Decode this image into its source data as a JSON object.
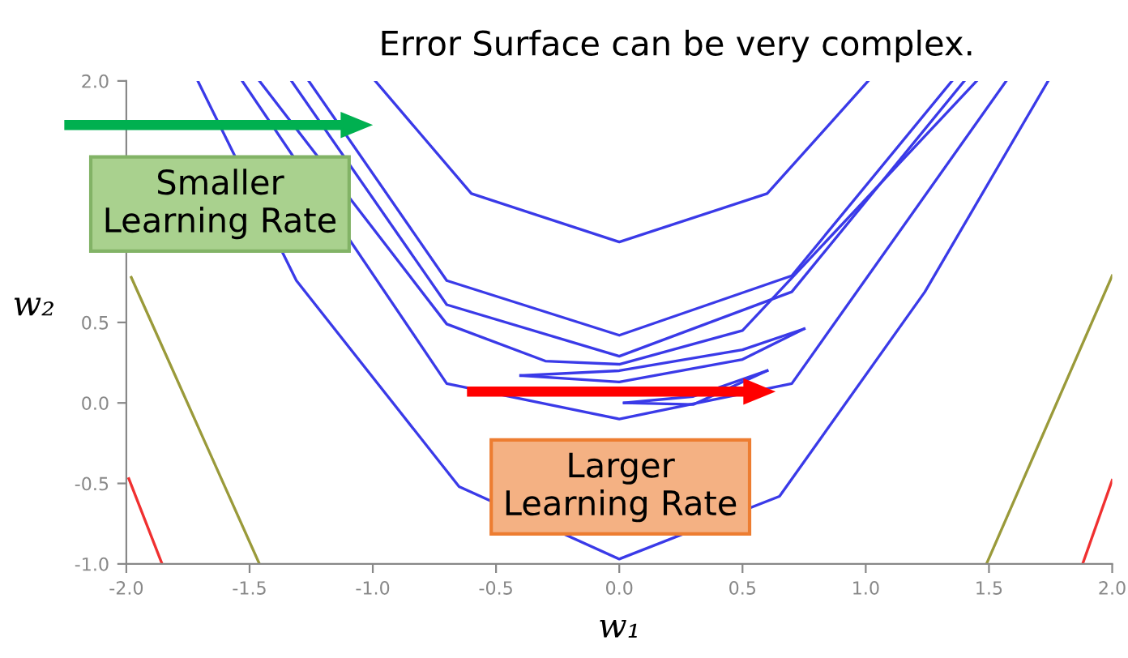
{
  "chart_data": {
    "type": "line",
    "title": "Error Surface can be very complex.",
    "xlabel": "w₁",
    "ylabel": "w₂",
    "xlim": [
      -2.0,
      2.0
    ],
    "ylim": [
      -1.0,
      2.0
    ],
    "xticks": [
      {
        "value": -2.0,
        "label": "-2.0"
      },
      {
        "value": -1.5,
        "label": "-1.5"
      },
      {
        "value": -1.0,
        "label": "-1.0"
      },
      {
        "value": -0.5,
        "label": "-0.5"
      },
      {
        "value": 0.0,
        "label": "0.0"
      },
      {
        "value": 0.5,
        "label": "0.5"
      },
      {
        "value": 1.0,
        "label": "1.0"
      },
      {
        "value": 1.5,
        "label": "1.5"
      },
      {
        "value": 2.0,
        "label": "2.0"
      }
    ],
    "yticks": [
      {
        "value": -1.0,
        "label": "-1.0"
      },
      {
        "value": -0.5,
        "label": "-0.5"
      },
      {
        "value": 0.0,
        "label": "0.0"
      },
      {
        "value": 0.5,
        "label": "0.5"
      },
      {
        "value": 1.0,
        "label": null
      },
      {
        "value": 1.5,
        "label": null
      },
      {
        "value": 2.0,
        "label": "2.0"
      }
    ],
    "grid": false,
    "legend": false,
    "marker": "none",
    "line_style": "solid",
    "annotations": [
      "Smaller Learning Rate",
      "Larger Learning Rate"
    ],
    "series": [
      {
        "color": "#3a3ae8",
        "x": [
          -1.71,
          -1.31,
          -0.65,
          0.0,
          0.65,
          1.24,
          1.74
        ],
        "values": [
          2.0,
          0.76,
          -0.52,
          -0.97,
          -0.58,
          0.69,
          2.0
        ]
      },
      {
        "color": "#3a3ae8",
        "x": [
          -0.99,
          -0.6,
          0.0,
          0.6,
          1.01
        ],
        "values": [
          2.0,
          1.3,
          1.0,
          1.3,
          2.0
        ]
      },
      {
        "color": "#3a3ae8",
        "x": [
          -1.26,
          -0.7,
          0.0,
          0.7,
          1.35
        ],
        "values": [
          2.0,
          0.76,
          0.42,
          0.79,
          2.0
        ]
      },
      {
        "color": "#3a3ae8",
        "x": [
          -1.33,
          -0.7,
          0.0,
          0.7,
          1.4
        ],
        "values": [
          2.0,
          0.61,
          0.29,
          0.69,
          2.0
        ]
      },
      {
        "color": "#3a3ae8",
        "x": [
          -1.46,
          -0.7,
          -0.3,
          0.0,
          0.5,
          1.45
        ],
        "values": [
          2.0,
          0.49,
          0.26,
          0.24,
          0.45,
          2.0
        ]
      },
      {
        "color": "#3a3ae8",
        "x": [
          -1.53,
          -0.7,
          0.0,
          0.7,
          1.57
        ],
        "values": [
          2.0,
          0.12,
          -0.1,
          0.12,
          2.0
        ]
      },
      {
        "color": "#3a3ae8",
        "x": [
          -0.4,
          0.0,
          0.5,
          0.75
        ],
        "values": [
          0.17,
          0.2,
          0.33,
          0.46
        ]
      },
      {
        "color": "#3a3ae8",
        "x": [
          -0.4,
          0.0,
          0.5,
          0.75
        ],
        "values": [
          0.17,
          0.13,
          0.27,
          0.46
        ]
      },
      {
        "color": "#3a3ae8",
        "x": [
          0.02,
          0.3,
          0.6
        ],
        "values": [
          0.0,
          0.04,
          0.2
        ]
      },
      {
        "color": "#3a3ae8",
        "x": [
          0.02,
          0.3,
          0.6
        ],
        "values": [
          0.0,
          -0.01,
          0.2
        ]
      },
      {
        "color": "#9a9a3a",
        "x": [
          -1.98,
          -1.46
        ],
        "values": [
          0.78,
          -1.0
        ]
      },
      {
        "color": "#9a9a3a",
        "x": [
          2.0,
          1.49
        ],
        "values": [
          0.79,
          -1.0
        ]
      },
      {
        "color": "#f03030",
        "x": [
          -1.99,
          -1.855
        ],
        "values": [
          -0.47,
          -1.0
        ]
      },
      {
        "color": "#f03030",
        "x": [
          2.0,
          1.88
        ],
        "values": [
          -0.48,
          -1.0
        ]
      }
    ]
  }
}
